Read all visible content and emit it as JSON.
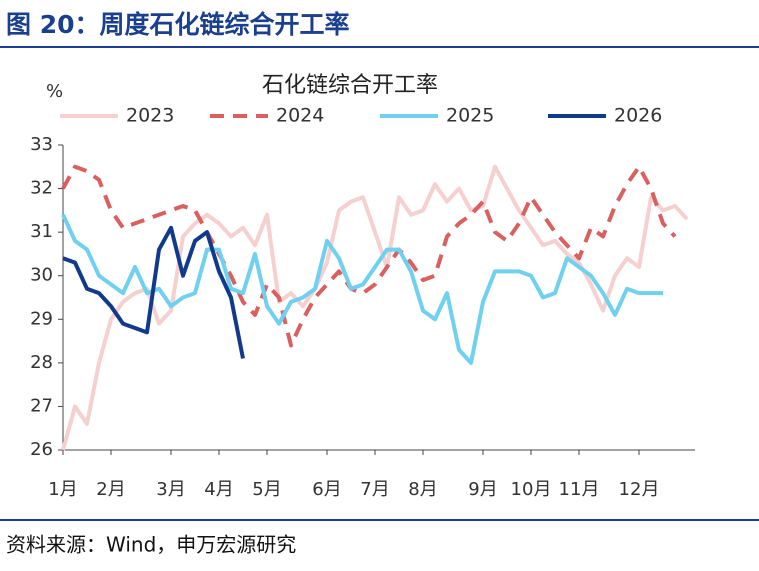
{
  "header": "图 20：周度石化链综合开工率",
  "source": "资料来源：Wind，申万宏源研究",
  "chart_data": {
    "type": "line",
    "title": "石化链综合开工率",
    "y_label": "%",
    "categories": [
      "1月",
      null,
      null,
      null,
      "2月",
      null,
      null,
      null,
      null,
      "3月",
      null,
      null,
      null,
      "4月",
      null,
      null,
      null,
      "5月",
      null,
      null,
      null,
      null,
      "6月",
      null,
      null,
      null,
      "7月",
      null,
      null,
      null,
      "8月",
      null,
      null,
      null,
      null,
      "9月",
      null,
      null,
      null,
      "10月",
      null,
      null,
      null,
      "11月",
      null,
      null,
      null,
      null,
      "12月",
      null,
      null,
      null,
      null
    ],
    "ylim": [
      26,
      33
    ],
    "yticks": [
      26,
      27,
      28,
      29,
      30,
      31,
      32,
      33
    ],
    "series": [
      {
        "name": "2023",
        "color": "#f6cfcf",
        "line_style": "solid",
        "values": [
          26.0,
          27.0,
          26.6,
          28.0,
          29.0,
          29.4,
          29.6,
          29.7,
          28.9,
          29.2,
          30.9,
          31.2,
          31.4,
          31.2,
          30.9,
          31.1,
          30.7,
          31.4,
          29.4,
          29.6,
          29.3,
          29.7,
          30.3,
          31.5,
          31.7,
          31.8,
          31.0,
          30.2,
          31.8,
          31.4,
          31.5,
          32.1,
          31.7,
          32.0,
          31.5,
          31.6,
          32.5,
          32.0,
          31.5,
          31.1,
          30.7,
          30.8,
          30.5,
          30.3,
          29.8,
          29.2,
          30.0,
          30.4,
          30.2,
          31.8,
          31.5,
          31.6,
          31.3
        ]
      },
      {
        "name": "2024",
        "color": "#d9605f",
        "line_style": "dashed",
        "values": [
          32.0,
          32.5,
          32.4,
          32.2,
          31.5,
          31.1,
          31.2,
          31.3,
          31.4,
          31.5,
          31.6,
          31.5,
          31.0,
          30.5,
          30.0,
          29.4,
          29.1,
          29.8,
          29.5,
          28.4,
          29.0,
          29.5,
          29.8,
          30.1,
          29.7,
          29.6,
          29.8,
          30.2,
          30.6,
          30.3,
          29.9,
          30.0,
          30.9,
          31.2,
          31.4,
          31.7,
          31.0,
          30.8,
          31.2,
          31.8,
          31.4,
          31.0,
          30.7,
          30.4,
          31.1,
          30.9,
          31.6,
          32.1,
          32.5,
          32.0,
          31.2,
          30.9,
          null
        ]
      },
      {
        "name": "2025",
        "color": "#6fd0f0",
        "line_style": "solid",
        "values": [
          31.4,
          30.8,
          30.6,
          30.0,
          29.8,
          29.6,
          30.2,
          29.6,
          29.7,
          29.3,
          29.5,
          29.6,
          30.6,
          30.6,
          29.7,
          29.6,
          30.5,
          29.3,
          28.9,
          29.4,
          29.5,
          29.7,
          30.8,
          30.4,
          29.7,
          29.8,
          30.2,
          30.6,
          30.6,
          30.1,
          29.2,
          29.0,
          29.6,
          28.3,
          28.0,
          29.4,
          30.1,
          30.1,
          30.1,
          30.0,
          29.5,
          29.6,
          30.4,
          30.2,
          30.0,
          29.6,
          29.1,
          29.7,
          29.6,
          29.6,
          29.6,
          null,
          null
        ]
      },
      {
        "name": "2026",
        "color": "#123a8c",
        "line_style": "solid",
        "values": [
          30.4,
          30.3,
          29.7,
          29.6,
          29.3,
          28.9,
          28.8,
          28.7,
          30.6,
          31.1,
          30.0,
          30.8,
          31.0,
          30.1,
          29.5,
          28.1,
          null,
          null,
          null,
          null,
          null,
          null,
          null,
          null,
          null,
          null,
          null,
          null,
          null,
          null,
          null,
          null,
          null,
          null,
          null,
          null,
          null,
          null,
          null,
          null,
          null,
          null,
          null,
          null,
          null,
          null,
          null,
          null,
          null,
          null,
          null,
          null,
          null
        ]
      }
    ]
  }
}
